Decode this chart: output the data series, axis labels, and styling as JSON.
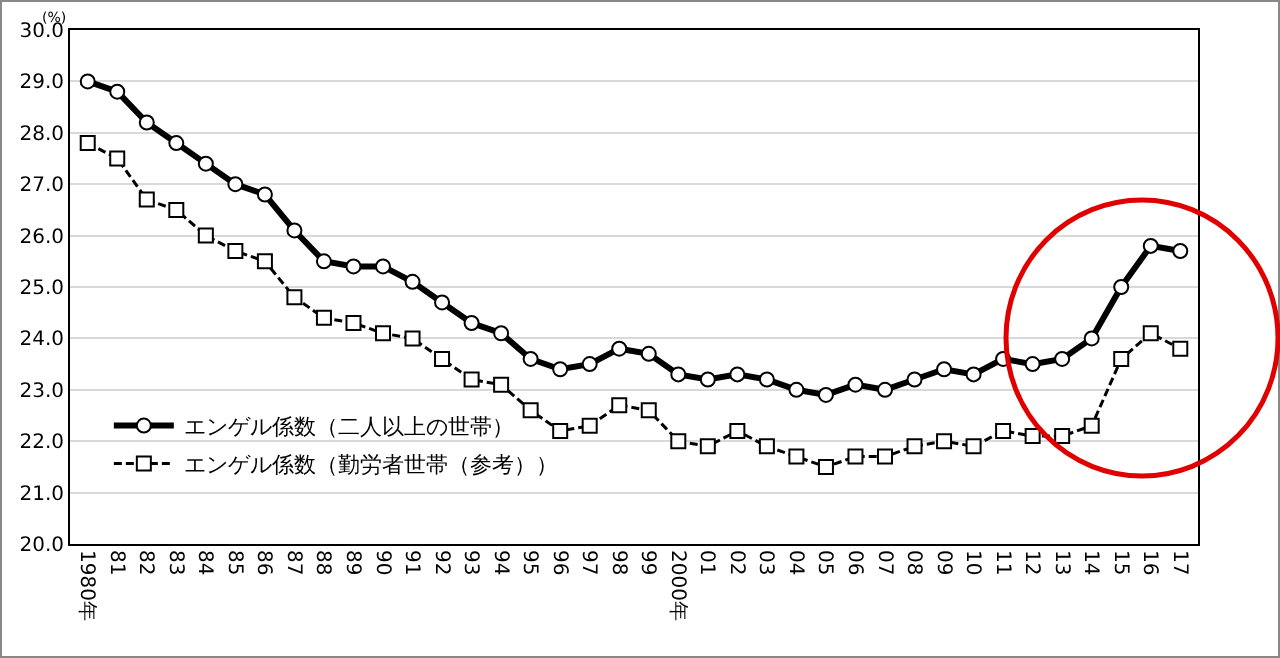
{
  "chart_data": {
    "type": "line",
    "ylabel": "(%)",
    "categories": [
      "1980年",
      "81",
      "82",
      "83",
      "84",
      "85",
      "86",
      "87",
      "88",
      "89",
      "90",
      "91",
      "92",
      "93",
      "94",
      "95",
      "96",
      "97",
      "98",
      "99",
      "2000年",
      "01",
      "02",
      "03",
      "04",
      "05",
      "06",
      "07",
      "08",
      "09",
      "10",
      "11",
      "12",
      "13",
      "14",
      "15",
      "16",
      "17"
    ],
    "series": [
      {
        "name": "エンゲル係数（二人以上の世帯）",
        "color": "#000000",
        "line_style": "solid",
        "marker": "circle",
        "values": [
          29.0,
          28.8,
          28.2,
          27.8,
          27.4,
          27.0,
          26.8,
          26.1,
          25.5,
          25.4,
          25.4,
          25.1,
          24.7,
          24.3,
          24.1,
          23.6,
          23.4,
          23.5,
          23.8,
          23.7,
          23.3,
          23.2,
          23.3,
          23.2,
          23.0,
          22.9,
          23.1,
          23.0,
          23.2,
          23.4,
          23.3,
          23.6,
          23.5,
          23.6,
          24.0,
          25.0,
          25.8,
          25.7
        ]
      },
      {
        "name": "エンゲル係数（勤労者世帯（参考））",
        "color": "#000000",
        "line_style": "dashed",
        "marker": "square",
        "values": [
          27.8,
          27.5,
          26.7,
          26.5,
          26.0,
          25.7,
          25.5,
          24.8,
          24.4,
          24.3,
          24.1,
          24.0,
          23.6,
          23.2,
          23.1,
          22.6,
          22.2,
          22.3,
          22.7,
          22.6,
          22.0,
          21.9,
          22.2,
          21.9,
          21.7,
          21.5,
          21.7,
          21.7,
          21.9,
          22.0,
          21.9,
          22.2,
          22.1,
          22.1,
          22.3,
          23.6,
          24.1,
          23.8
        ]
      }
    ],
    "ylim": [
      20,
      30
    ],
    "yticks": [
      {
        "value": 20,
        "label": "20.0"
      },
      {
        "value": 21,
        "label": "21.0"
      },
      {
        "value": 22,
        "label": "22.0"
      },
      {
        "value": 23,
        "label": "23.0"
      },
      {
        "value": 24,
        "label": "24.0"
      },
      {
        "value": 25,
        "label": "25.0"
      },
      {
        "value": 26,
        "label": "26.0"
      },
      {
        "value": 27,
        "label": "27.0"
      },
      {
        "value": 28,
        "label": "28.0"
      },
      {
        "value": 29,
        "label": "29.0"
      },
      {
        "value": 30,
        "label": "30.0"
      }
    ],
    "grid": "y",
    "legend": "bottom left"
  }
}
